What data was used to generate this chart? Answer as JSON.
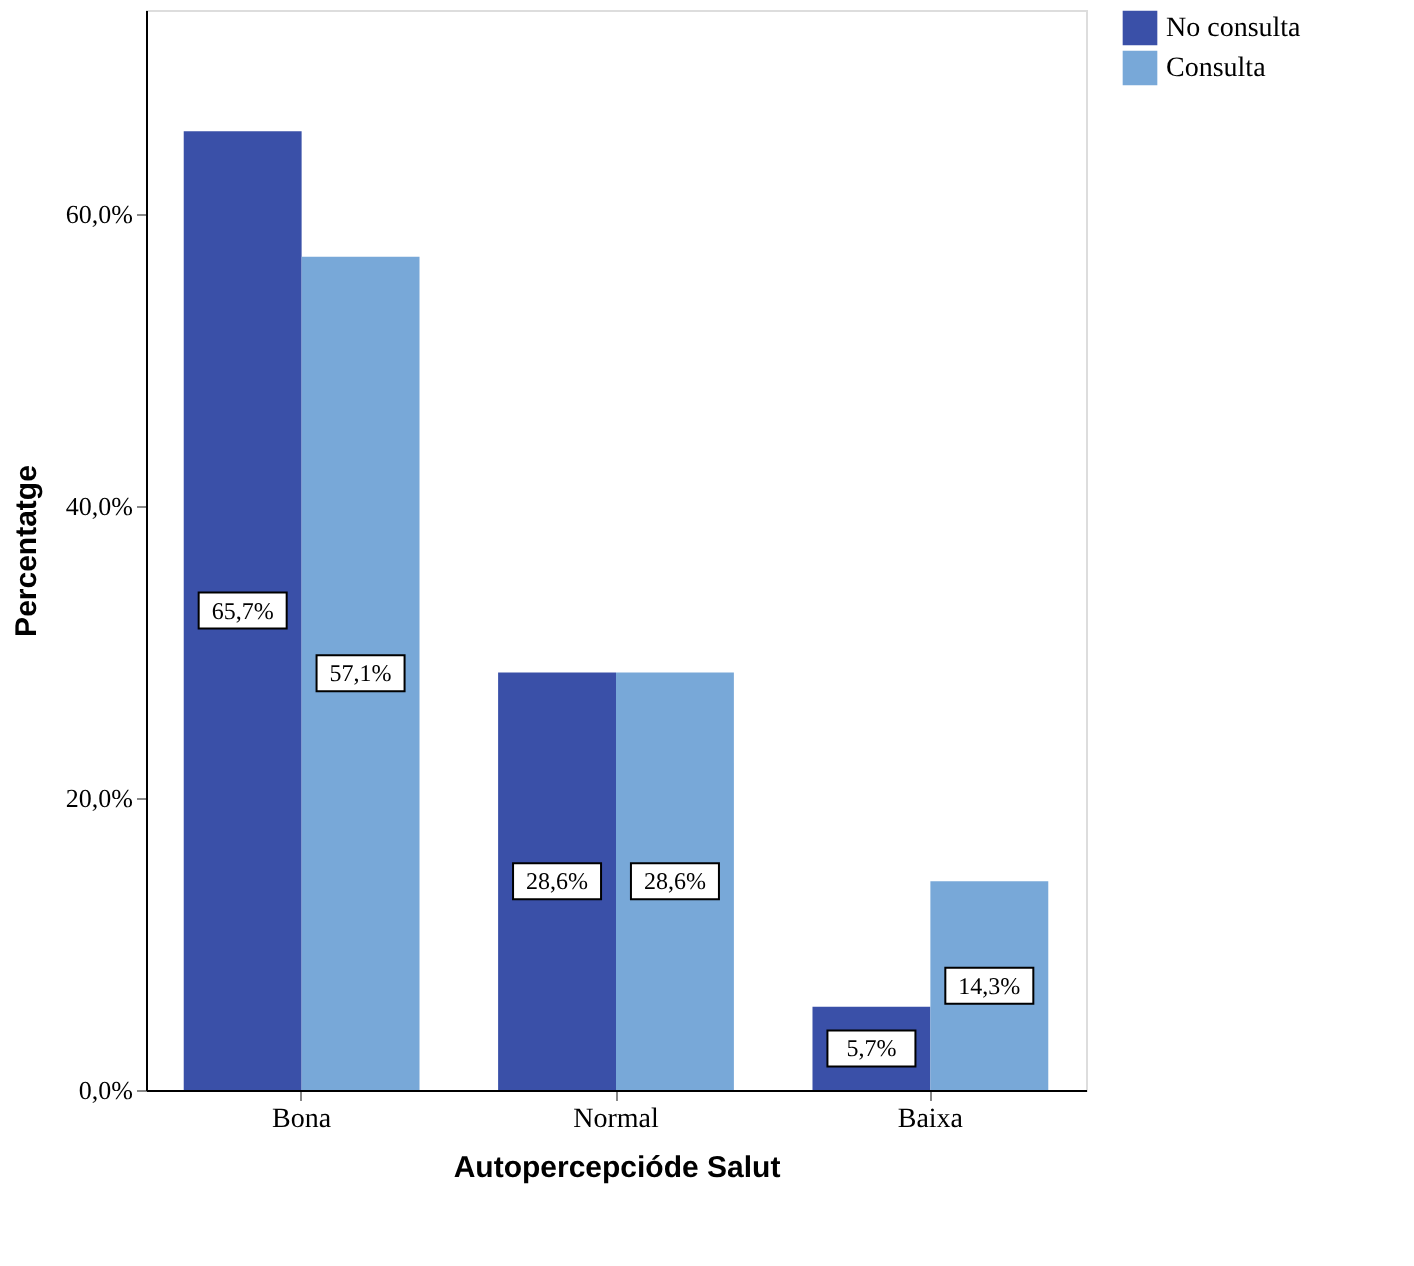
{
  "chart_data": {
    "type": "bar",
    "xlabel": "Autopercepcióde Salut",
    "ylabel": "Percentatge",
    "categories": [
      "Bona",
      "Normal",
      "Baixa"
    ],
    "series": [
      {
        "name": "No consulta",
        "color": "#3a50a8",
        "values": [
          65.7,
          28.6,
          5.7
        ],
        "value_labels": [
          "65,7%",
          "28,6%",
          "5,7%"
        ]
      },
      {
        "name": "Consulta",
        "color": "#78a8d8",
        "values": [
          57.1,
          28.6,
          14.3
        ],
        "value_labels": [
          "57,1%",
          "28,6%",
          "14,3%"
        ]
      }
    ],
    "ylim": [
      0,
      74
    ],
    "yticks": [
      {
        "value": 0,
        "label": "0,0%"
      },
      {
        "value": 20,
        "label": "20,0%"
      },
      {
        "value": 40,
        "label": "40,0%"
      },
      {
        "value": 60,
        "label": "60,0%"
      }
    ],
    "grid": false,
    "legend": "top right"
  }
}
